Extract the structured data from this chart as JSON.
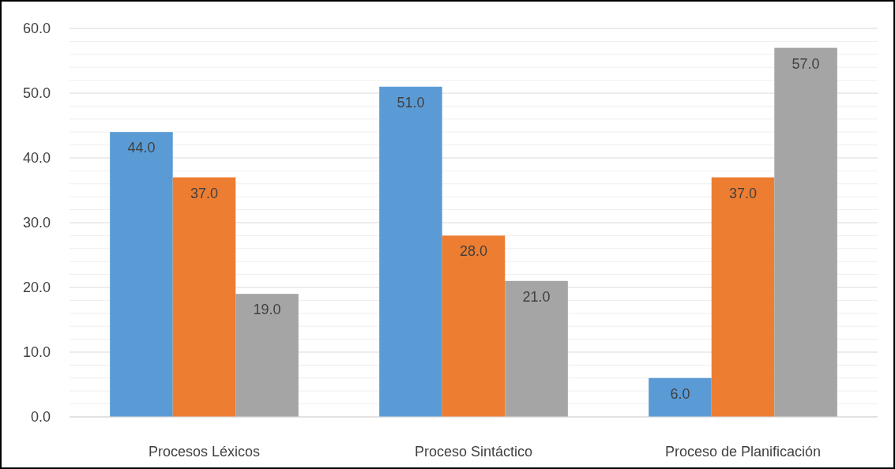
{
  "chart_data": {
    "type": "bar",
    "categories": [
      "Procesos Léxicos",
      "Proceso Sintáctico",
      "Proceso de Planificación"
    ],
    "series": [
      {
        "color": "#5b9bd5",
        "values": [
          44,
          51,
          6
        ],
        "value_labels": [
          "44.0",
          "51.0",
          "6.0"
        ]
      },
      {
        "color": "#ed7d31",
        "values": [
          37,
          28,
          37
        ],
        "value_labels": [
          "37.0",
          "28.0",
          "37.0"
        ]
      },
      {
        "color": "#a5a5a5",
        "values": [
          19,
          21,
          57
        ],
        "value_labels": [
          "19.0",
          "21.0",
          "57.0"
        ]
      }
    ],
    "ylim": [
      0,
      60
    ],
    "yticks": [
      {
        "value": 0,
        "label": "0.0"
      },
      {
        "value": 2,
        "label": null
      },
      {
        "value": 4,
        "label": null
      },
      {
        "value": 6,
        "label": null
      },
      {
        "value": 8,
        "label": null
      },
      {
        "value": 10,
        "label": "10.0"
      },
      {
        "value": 12,
        "label": null
      },
      {
        "value": 14,
        "label": null
      },
      {
        "value": 16,
        "label": null
      },
      {
        "value": 18,
        "label": null
      },
      {
        "value": 20,
        "label": "20.0"
      },
      {
        "value": 22,
        "label": null
      },
      {
        "value": 24,
        "label": null
      },
      {
        "value": 26,
        "label": null
      },
      {
        "value": 28,
        "label": null
      },
      {
        "value": 30,
        "label": "30.0"
      },
      {
        "value": 32,
        "label": null
      },
      {
        "value": 34,
        "label": null
      },
      {
        "value": 36,
        "label": null
      },
      {
        "value": 38,
        "label": null
      },
      {
        "value": 40,
        "label": "40.0"
      },
      {
        "value": 42,
        "label": null
      },
      {
        "value": 44,
        "label": null
      },
      {
        "value": 46,
        "label": null
      },
      {
        "value": 48,
        "label": null
      },
      {
        "value": 50,
        "label": "50.0"
      },
      {
        "value": 52,
        "label": null
      },
      {
        "value": 54,
        "label": null
      },
      {
        "value": 56,
        "label": null
      },
      {
        "value": 58,
        "label": null
      },
      {
        "value": 60,
        "label": "60.0"
      }
    ],
    "grid": "y"
  }
}
